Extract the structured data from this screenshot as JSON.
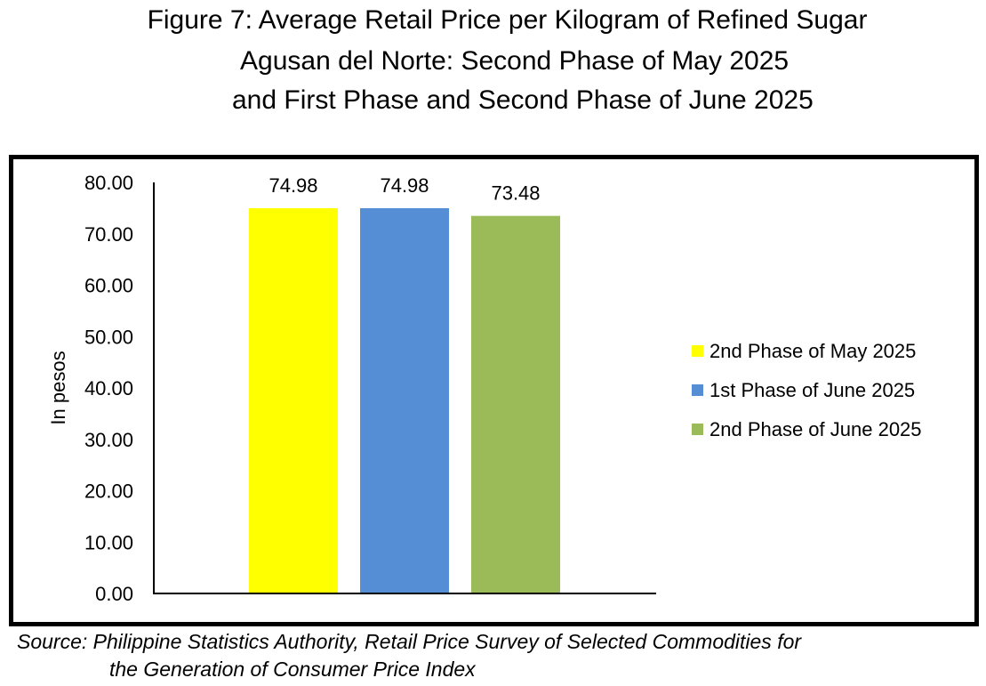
{
  "title_lines": [
    "Figure 7: Average Retail Price per Kilogram of Refined Sugar",
    "Agusan del Norte: Second Phase of May 2025",
    "and First Phase and Second Phase of June 2025"
  ],
  "source_lines": [
    "Source: Philippine Statistics Authority, Retail Price Survey of Selected Commodities for",
    "the Generation of Consumer Price Index"
  ],
  "chart_data": {
    "type": "bar",
    "title": "Figure 7: Average Retail Price per Kilogram of Refined Sugar Agusan del Norte: Second Phase of May 2025 and First Phase and Second Phase of June 2025",
    "xlabel": "",
    "ylabel": "In pesos",
    "ylim": [
      0,
      80
    ],
    "yticks": [
      "0.00",
      "10.00",
      "20.00",
      "30.00",
      "40.00",
      "50.00",
      "60.00",
      "70.00",
      "80.00"
    ],
    "grid": false,
    "legend_position": "right",
    "series": [
      {
        "name": "2nd Phase of May 2025",
        "values": [
          74.98
        ],
        "label": "74.98",
        "color": "#FFFF00"
      },
      {
        "name": "1st Phase of June 2025",
        "values": [
          74.98
        ],
        "label": "74.98",
        "color": "#558ED5"
      },
      {
        "name": "2nd Phase of June 2025",
        "values": [
          73.48
        ],
        "label": "73.48",
        "color": "#9BBB59"
      }
    ]
  }
}
